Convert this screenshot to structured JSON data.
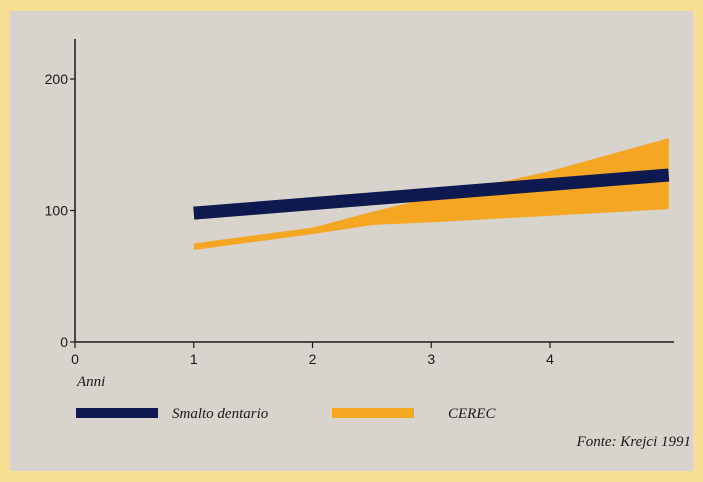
{
  "chart_data": {
    "type": "line",
    "xlabel": "Anni",
    "ylabel": "",
    "xlim": [
      0,
      5
    ],
    "ylim": [
      0,
      230
    ],
    "x_ticks": [
      0,
      1,
      2,
      3,
      4
    ],
    "y_ticks": [
      0,
      100,
      200
    ],
    "grid": false,
    "legend_position": "bottom-left",
    "series": [
      {
        "name": "Smalto dentario",
        "color": "#0e1a4f",
        "style": "thick-line",
        "x": [
          1,
          5
        ],
        "y": [
          98,
          127
        ]
      },
      {
        "name": "CEREC",
        "color": "#f5a623",
        "style": "band",
        "x": [
          1,
          2,
          2.5,
          3,
          4,
          5
        ],
        "y_upper": [
          75,
          87,
          99,
          110,
          130,
          155
        ],
        "y_lower": [
          70,
          82,
          89,
          91,
          96,
          101
        ]
      }
    ],
    "source_note": "Fonte: Krejci 1991"
  }
}
